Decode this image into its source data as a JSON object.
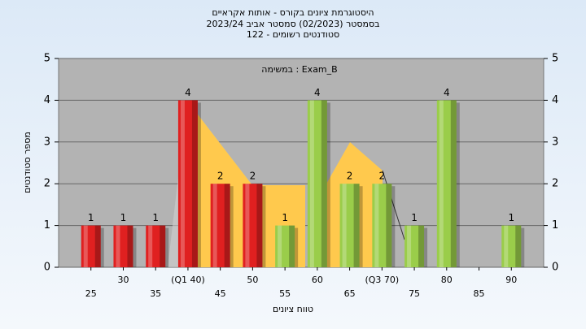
{
  "chart_data": {
    "type": "bar",
    "title": "היסטוגרמת ציונים בקורס - אותות אקראיים",
    "subtitle": "בסמסטר  (02/2023)  סמסטר אביב 2023/24",
    "subtitle2": "סטודנטים רשומים - 122",
    "annotation": "במשימה : Exam_B",
    "x_label": "טווח ציונים",
    "y_label": "מספר סטודנטים",
    "categories": [
      "25",
      "30",
      "35",
      "(Q1 40)",
      "45",
      "50",
      "55",
      "60",
      "65",
      "(Q3 70)",
      "75",
      "80",
      "85",
      "90"
    ],
    "values": [
      1,
      1,
      1,
      4,
      2,
      2,
      1,
      4,
      2,
      2,
      1,
      4,
      0,
      1
    ],
    "colors": [
      "#e02020",
      "#e02020",
      "#e02020",
      "#e02020",
      "#e02020",
      "#e02020",
      "#9acd4a",
      "#9acd4a",
      "#9acd4a",
      "#9acd4a",
      "#9acd4a",
      "#9acd4a",
      "#9acd4a",
      "#9acd4a"
    ],
    "ylim": [
      0,
      5
    ],
    "yticks": [
      0,
      1,
      2,
      3,
      4,
      5
    ],
    "grid": true
  }
}
